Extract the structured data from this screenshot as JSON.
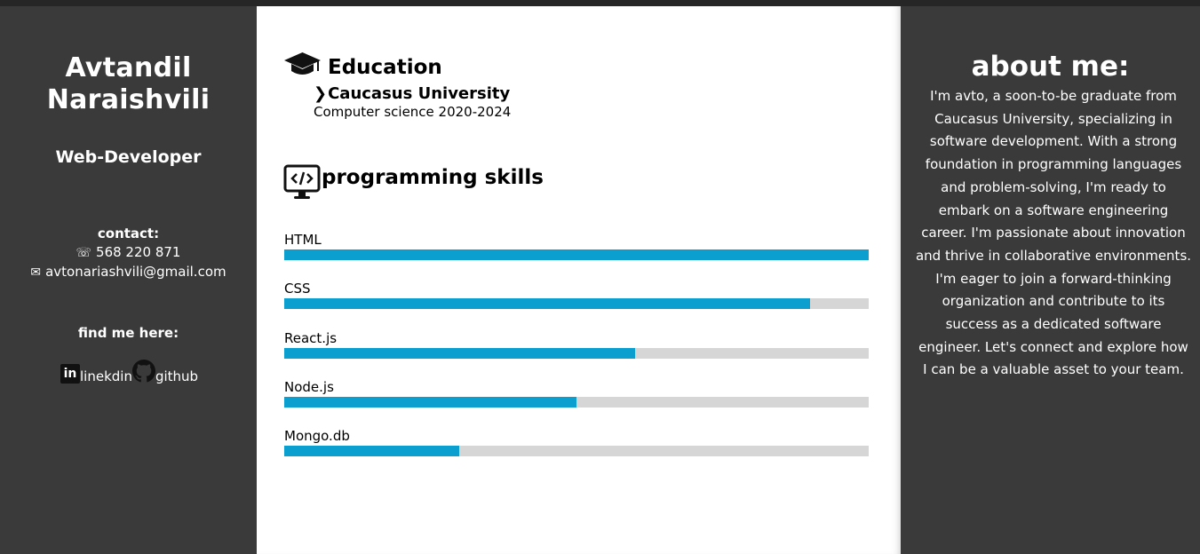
{
  "profile": {
    "name": "Avtandil Naraishvili",
    "role": "Web-Developer"
  },
  "contact": {
    "heading": "contact:",
    "phone": "568 220 871",
    "email": "avtonariashvili@gmail.com"
  },
  "social": {
    "heading": "find me here:",
    "linkedin_label": "linekdin",
    "github_label": "github"
  },
  "education": {
    "title": "Education",
    "university": "Caucasus University",
    "degree": "Computer science 2020-2024"
  },
  "skills": {
    "title": "programming skills",
    "items": [
      {
        "label": "HTML",
        "level": 1.0
      },
      {
        "label": "CSS",
        "level": 0.9
      },
      {
        "label": "React.js",
        "level": 0.6
      },
      {
        "label": "Node.js",
        "level": 0.5
      },
      {
        "label": "Mongo.db",
        "level": 0.3
      }
    ]
  },
  "about": {
    "title": "about me:",
    "text": "I'm avto, a soon-to-be graduate from Caucasus University, specializing in software development. With a strong foundation in programming languages and problem-solving, I'm ready to embark on a software engineering career. I'm passionate about innovation and thrive in collaborative environments. I'm eager to join a forward-thinking organization and contribute to its success as a dedicated software engineer. Let's connect and explore how I can be a valuable asset to your team."
  },
  "colors": {
    "sidebar_bg": "#3a3a3a",
    "bar_fill": "#0a9fcf",
    "bar_track": "#d6d6d6"
  },
  "icons": {
    "phone": "phone-icon",
    "email": "mail-icon",
    "linkedin": "linkedin-icon",
    "github": "github-icon",
    "education": "graduation-cap-icon",
    "skills": "code-monitor-icon",
    "university": "chevron-right-icon"
  }
}
